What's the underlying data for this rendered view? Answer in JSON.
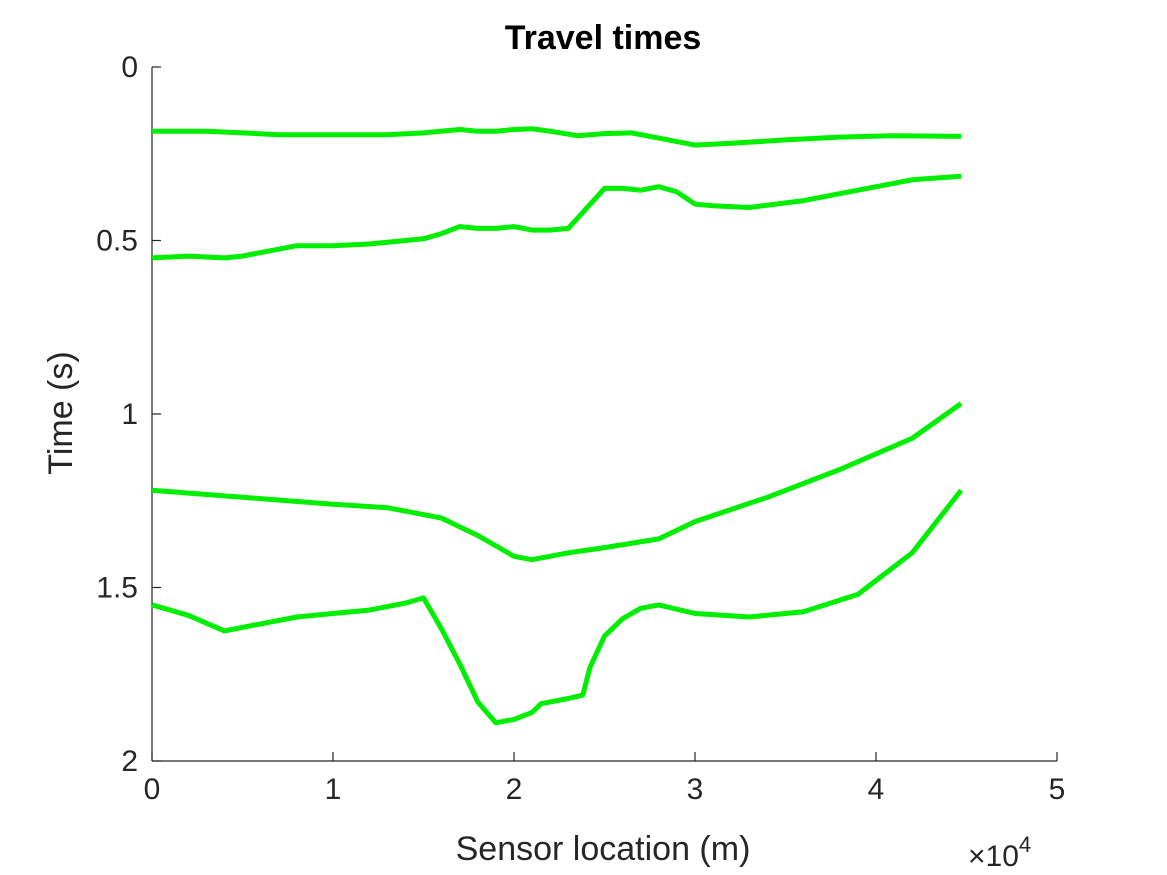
{
  "chart_data": {
    "type": "line",
    "title": "Travel times",
    "xlabel": "Sensor location (m)",
    "ylabel": "Time (s)",
    "x_multiplier_label": "×10",
    "x_multiplier_exponent": "4",
    "xlim": [
      0,
      5
    ],
    "ylim": [
      0,
      2
    ],
    "y_reversed": true,
    "grid": false,
    "x_ticks": [
      "0",
      "1",
      "2",
      "3",
      "4",
      "5"
    ],
    "y_ticks": [
      "0",
      "0.5",
      "1",
      "1.5",
      "2"
    ],
    "line_color": "#00ee00",
    "series": [
      {
        "x": [
          0,
          0.3,
          0.5,
          0.7,
          1.0,
          1.3,
          1.5,
          1.7,
          1.8,
          1.9,
          2.0,
          2.1,
          2.2,
          2.35,
          2.5,
          2.65,
          2.8,
          3.0,
          3.2,
          3.5,
          3.8,
          4.1,
          4.47
        ],
        "y": [
          0.185,
          0.185,
          0.19,
          0.195,
          0.195,
          0.195,
          0.19,
          0.18,
          0.185,
          0.185,
          0.18,
          0.178,
          0.185,
          0.198,
          0.192,
          0.19,
          0.205,
          0.225,
          0.22,
          0.21,
          0.202,
          0.198,
          0.2
        ]
      },
      {
        "x": [
          0,
          0.2,
          0.4,
          0.5,
          0.6,
          0.7,
          0.8,
          1.0,
          1.2,
          1.4,
          1.5,
          1.6,
          1.7,
          1.8,
          1.9,
          2.0,
          2.1,
          2.2,
          2.3,
          2.5,
          2.6,
          2.7,
          2.8,
          2.9,
          3.0,
          3.1,
          3.3,
          3.6,
          3.9,
          4.2,
          4.47
        ],
        "y": [
          0.55,
          0.545,
          0.55,
          0.545,
          0.535,
          0.525,
          0.515,
          0.515,
          0.51,
          0.5,
          0.495,
          0.48,
          0.46,
          0.465,
          0.465,
          0.46,
          0.47,
          0.47,
          0.465,
          0.35,
          0.35,
          0.355,
          0.345,
          0.36,
          0.395,
          0.4,
          0.405,
          0.385,
          0.355,
          0.325,
          0.315
        ]
      },
      {
        "x": [
          0,
          0.5,
          1.0,
          1.3,
          1.6,
          1.8,
          2.0,
          2.1,
          2.3,
          2.5,
          2.8,
          3.0,
          3.4,
          3.8,
          4.2,
          4.47
        ],
        "y": [
          1.22,
          1.24,
          1.26,
          1.27,
          1.3,
          1.35,
          1.41,
          1.42,
          1.4,
          1.385,
          1.36,
          1.31,
          1.24,
          1.16,
          1.07,
          0.97
        ]
      },
      {
        "x": [
          0,
          0.2,
          0.4,
          0.6,
          0.8,
          1.0,
          1.2,
          1.4,
          1.5,
          1.6,
          1.7,
          1.8,
          1.9,
          2.0,
          2.05,
          2.1,
          2.15,
          2.3,
          2.38,
          2.42,
          2.5,
          2.6,
          2.7,
          2.8,
          3.0,
          3.3,
          3.6,
          3.9,
          4.2,
          4.47
        ],
        "y": [
          1.55,
          1.58,
          1.625,
          1.605,
          1.585,
          1.575,
          1.565,
          1.545,
          1.53,
          1.62,
          1.72,
          1.83,
          1.89,
          1.88,
          1.87,
          1.86,
          1.835,
          1.82,
          1.81,
          1.73,
          1.64,
          1.59,
          1.56,
          1.55,
          1.575,
          1.585,
          1.57,
          1.52,
          1.4,
          1.22
        ]
      }
    ]
  }
}
